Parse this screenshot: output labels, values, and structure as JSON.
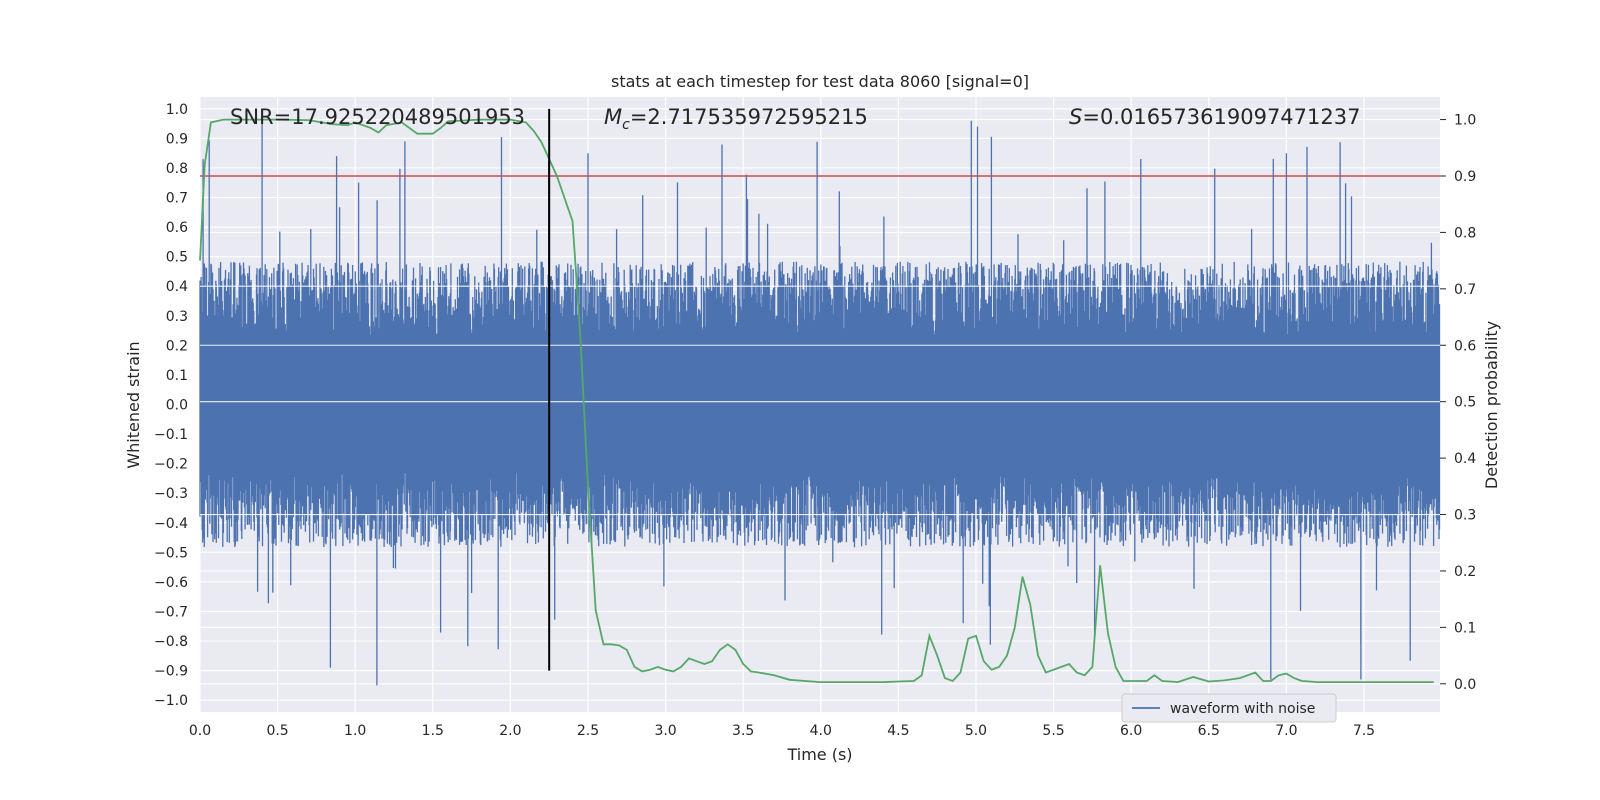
{
  "chart_data": {
    "type": "line",
    "title": "stats at each timestep for test data 8060 [signal=0]",
    "xlabel": "Time (s)",
    "ylabel": "Whitened strain",
    "ylabel_right": "Detection probability",
    "xlim": [
      0.0,
      7.99
    ],
    "ylim": [
      -1.04,
      1.04
    ],
    "ylim_right": [
      -0.05,
      1.04
    ],
    "x_ticks": [
      "0.0",
      "0.5",
      "1.0",
      "1.5",
      "2.0",
      "2.5",
      "3.0",
      "3.5",
      "4.0",
      "4.5",
      "5.0",
      "5.5",
      "6.0",
      "6.5",
      "7.0",
      "7.5"
    ],
    "y_ticks": [
      "1.0",
      "0.9",
      "0.8",
      "0.7",
      "0.6",
      "0.5",
      "0.4",
      "0.3",
      "0.2",
      "0.1",
      "0.0",
      "-0.1",
      "-0.2",
      "-0.3",
      "-0.4",
      "-0.5",
      "-0.6",
      "-0.7",
      "-0.8",
      "-0.9",
      "-1.0"
    ],
    "y_ticks_right": [
      "1.0",
      "0.9",
      "0.8",
      "0.7",
      "0.6",
      "0.5",
      "0.4",
      "0.3",
      "0.2",
      "0.1",
      "0.0"
    ],
    "grid": true,
    "background": "#eaeaf2",
    "annotations": {
      "snr": "SNR=17.925220489501953",
      "mc": "=2.717535972595215",
      "s": "=0.016573619097471237"
    },
    "threshold": {
      "value_right": 0.9,
      "color": "#c44e52"
    },
    "event_time": {
      "x": 2.25,
      "y_from": -0.9,
      "y_to": 1.0,
      "color": "#000000"
    },
    "waveform": {
      "name": "waveform with noise",
      "color": "#4c72b0",
      "typical_amplitude": 0.42,
      "max_positive": 1.0,
      "max_negative": -0.95,
      "spikes": [
        {
          "x": 0.02,
          "y": 0.83
        },
        {
          "x": 0.4,
          "y": 1.0
        },
        {
          "x": 0.84,
          "y": -0.89
        },
        {
          "x": 0.88,
          "y": 0.84
        },
        {
          "x": 1.14,
          "y": -0.95
        },
        {
          "x": 1.32,
          "y": 0.89
        },
        {
          "x": 2.5,
          "y": 0.85
        },
        {
          "x": 4.97,
          "y": 0.96
        },
        {
          "x": 5.01,
          "y": 0.94
        },
        {
          "x": 6.9,
          "y": -0.93
        },
        {
          "x": 7.0,
          "y": 0.85
        },
        {
          "x": 7.48,
          "y": -0.93
        }
      ]
    },
    "detection_probability": {
      "color": "#55a868",
      "x": [
        0.0,
        0.03,
        0.07,
        0.15,
        0.3,
        0.5,
        0.7,
        0.85,
        0.95,
        1.0,
        1.1,
        1.15,
        1.2,
        1.3,
        1.4,
        1.5,
        1.55,
        1.6,
        1.8,
        2.0,
        2.1,
        2.15,
        2.2,
        2.25,
        2.3,
        2.35,
        2.4,
        2.45,
        2.5,
        2.55,
        2.6,
        2.65,
        2.7,
        2.75,
        2.8,
        2.85,
        2.9,
        2.95,
        3.0,
        3.05,
        3.1,
        3.15,
        3.2,
        3.25,
        3.3,
        3.35,
        3.4,
        3.45,
        3.5,
        3.55,
        3.6,
        3.7,
        3.8,
        3.9,
        4.0,
        4.1,
        4.2,
        4.3,
        4.4,
        4.5,
        4.6,
        4.65,
        4.7,
        4.75,
        4.8,
        4.85,
        4.9,
        4.95,
        5.0,
        5.05,
        5.1,
        5.15,
        5.2,
        5.25,
        5.3,
        5.35,
        5.4,
        5.45,
        5.5,
        5.55,
        5.6,
        5.65,
        5.7,
        5.75,
        5.8,
        5.85,
        5.9,
        5.95,
        6.0,
        6.05,
        6.1,
        6.15,
        6.2,
        6.25,
        6.3,
        6.4,
        6.5,
        6.6,
        6.7,
        6.8,
        6.85,
        6.9,
        6.95,
        7.0,
        7.05,
        7.1,
        7.15,
        7.2,
        7.25,
        7.3,
        7.4,
        7.5,
        7.6,
        7.7,
        7.8,
        7.9,
        7.95
      ],
      "y": [
        0.75,
        0.92,
        0.995,
        1.0,
        1.0,
        1.0,
        0.999,
        0.992,
        0.99,
        0.995,
        0.985,
        0.977,
        0.99,
        0.995,
        0.975,
        0.975,
        0.985,
        0.997,
        1.0,
        1.0,
        0.995,
        0.98,
        0.96,
        0.93,
        0.9,
        0.86,
        0.82,
        0.62,
        0.35,
        0.13,
        0.07,
        0.07,
        0.068,
        0.06,
        0.03,
        0.022,
        0.025,
        0.03,
        0.025,
        0.022,
        0.03,
        0.045,
        0.04,
        0.035,
        0.04,
        0.06,
        0.07,
        0.06,
        0.035,
        0.022,
        0.02,
        0.015,
        0.007,
        0.005,
        0.003,
        0.003,
        0.003,
        0.003,
        0.003,
        0.004,
        0.005,
        0.015,
        0.085,
        0.05,
        0.01,
        0.005,
        0.02,
        0.08,
        0.085,
        0.04,
        0.025,
        0.03,
        0.05,
        0.1,
        0.19,
        0.14,
        0.05,
        0.02,
        0.025,
        0.03,
        0.035,
        0.02,
        0.015,
        0.03,
        0.21,
        0.09,
        0.03,
        0.005,
        0.005,
        0.005,
        0.005,
        0.015,
        0.005,
        0.004,
        0.003,
        0.012,
        0.004,
        0.006,
        0.01,
        0.02,
        0.005,
        0.005,
        0.015,
        0.018,
        0.01,
        0.005,
        0.004,
        0.003,
        0.003,
        0.003,
        0.003,
        0.003,
        0.003,
        0.003,
        0.003,
        0.003,
        0.003
      ]
    }
  }
}
